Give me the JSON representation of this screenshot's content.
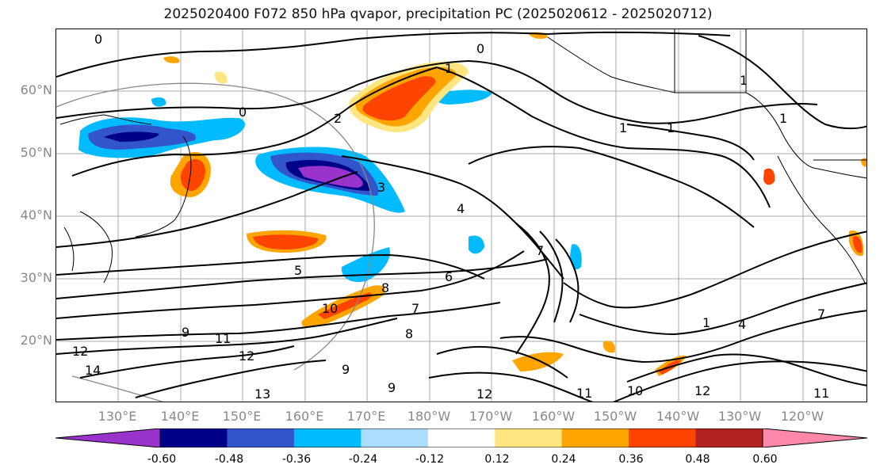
{
  "title": "2025020400 F072 850 hPa qvapor, precipitation PC (2025020612 - 2025020712)",
  "map": {
    "lat_labels": [
      {
        "text": "60°N",
        "lat": 60
      },
      {
        "text": "50°N",
        "lat": 50
      },
      {
        "text": "40°N",
        "lat": 40
      },
      {
        "text": "30°N",
        "lat": 30
      },
      {
        "text": "20°N",
        "lat": 20
      }
    ],
    "lon_labels": [
      "130°E",
      "140°E",
      "150°E",
      "160°E",
      "170°E",
      "180°W",
      "170°W",
      "160°W",
      "150°W",
      "140°W",
      "130°W",
      "120°W"
    ],
    "contour_labels": [
      "0",
      "0",
      "0",
      "1",
      "1",
      "1",
      "1",
      "1",
      "1",
      "2",
      "3",
      "4",
      "4",
      "5",
      "6",
      "7",
      "7",
      "7",
      "8",
      "8",
      "9",
      "9",
      "9",
      "10",
      "10",
      "11",
      "11",
      "11",
      "12",
      "12",
      "12",
      "12",
      "13",
      "14"
    ]
  },
  "colorbar": {
    "ticks": [
      "-0.60",
      "-0.48",
      "-0.36",
      "-0.24",
      "-0.12",
      "0.12",
      "0.24",
      "0.36",
      "0.48",
      "0.60"
    ],
    "colors": [
      "#9933CC",
      "#000088",
      "#3355CC",
      "#00BBFF",
      "#AADDFF",
      "#FFFFFF",
      "#FFE680",
      "#FFA500",
      "#FF4400",
      "#B22222",
      "#FF88AA"
    ]
  }
}
